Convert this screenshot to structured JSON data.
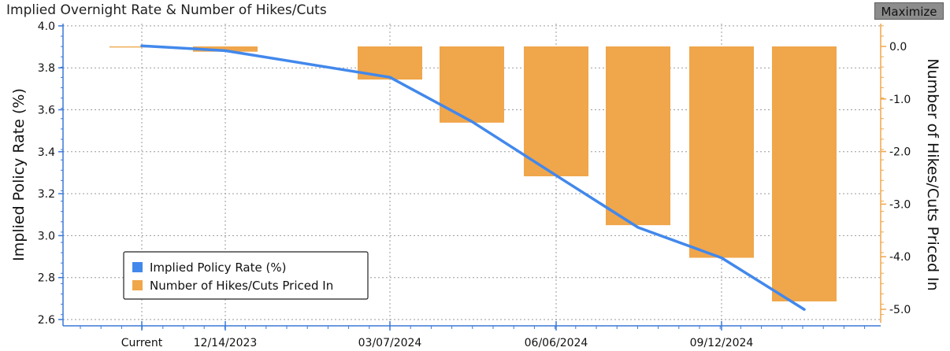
{
  "window": {
    "title": "Implied Overnight Rate & Number of Hikes/Cuts",
    "maximize_label": "Maximize"
  },
  "colors": {
    "line": "#4288ec",
    "bar": "#f0a64b",
    "grid": "#9a9a9a",
    "axis_accent": "#f0a64b",
    "axis_left": "#3a78d8"
  },
  "chart_data": {
    "type": "bar+line",
    "title": "Implied Overnight Rate & Number of Hikes/Cuts",
    "x_tick_labels": [
      "Current",
      "12/14/2023",
      "03/07/2024",
      "06/06/2024",
      "09/12/2024"
    ],
    "y_left": {
      "label": "Implied Policy Rate (%)",
      "range": [
        2.6,
        4.0
      ],
      "ticks": [
        "4.0",
        "3.8",
        "3.6",
        "3.4",
        "3.2",
        "3.0",
        "2.8",
        "2.6"
      ]
    },
    "y_right": {
      "label": "Number of Hikes/Cuts Priced In",
      "range": [
        -5.0,
        0.0
      ],
      "ticks": [
        "0.0",
        "-1.0",
        "-2.0",
        "-3.0",
        "-4.0",
        "-5.0"
      ]
    },
    "series": [
      {
        "name": "Implied Policy Rate (%)",
        "kind": "line",
        "values": [
          3.905,
          3.882,
          3.755,
          3.544,
          3.287,
          3.039,
          2.894,
          2.648
        ]
      },
      {
        "name": "Number of Hikes/Cuts Priced In",
        "kind": "bar",
        "values": [
          -0.02,
          -0.1,
          -0.63,
          -1.45,
          -2.47,
          -3.4,
          -4.02,
          -4.85
        ]
      }
    ],
    "legend_position": "bottom-left",
    "grid": true
  }
}
